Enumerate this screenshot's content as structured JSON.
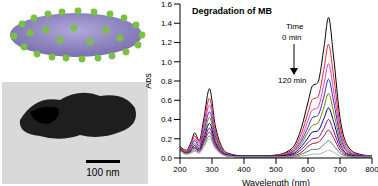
{
  "chart_data": {
    "type": "line",
    "title": "Degradation of MB",
    "x_label": "Wavelength (nm)",
    "y_label": "Abs",
    "xlim": [
      200,
      800
    ],
    "xticks": [
      200,
      300,
      400,
      500,
      600,
      700,
      800
    ],
    "ylim": [
      0,
      1.6
    ],
    "yticks": [
      {
        "value": 0,
        "label": "0.0"
      },
      0.2,
      0.4,
      0.6,
      0.8,
      {
        "value": 1,
        "label": "1.0"
      },
      1.2,
      1.4,
      1.6
    ],
    "grid": false,
    "annotations": [
      "Time",
      "0 min",
      "120 min"
    ],
    "x": [
      200,
      220,
      235,
      246,
      260,
      275,
      292,
      310,
      330,
      350,
      400,
      450,
      500,
      550,
      580,
      600,
      614,
      630,
      650,
      664,
      680,
      700,
      720,
      750,
      800
    ],
    "series": [
      {
        "color": "#000000",
        "values": [
          0.12,
          0.08,
          0.17,
          0.26,
          0.18,
          0.42,
          0.72,
          0.34,
          0.12,
          0.05,
          0.02,
          0.02,
          0.03,
          0.1,
          0.32,
          0.58,
          0.75,
          0.78,
          1.15,
          1.46,
          1.05,
          0.42,
          0.15,
          0.05,
          0.02
        ]
      },
      {
        "color": "#e8202a",
        "values": [
          0.11,
          0.07,
          0.15,
          0.23,
          0.16,
          0.36,
          0.62,
          0.29,
          0.1,
          0.04,
          0.02,
          0.02,
          0.03,
          0.08,
          0.26,
          0.47,
          0.61,
          0.63,
          0.93,
          1.18,
          0.85,
          0.34,
          0.12,
          0.04,
          0.02
        ]
      },
      {
        "color": "#e040c0",
        "values": [
          0.11,
          0.07,
          0.13,
          0.2,
          0.14,
          0.32,
          0.55,
          0.26,
          0.09,
          0.04,
          0.02,
          0.02,
          0.02,
          0.07,
          0.21,
          0.39,
          0.5,
          0.52,
          0.77,
          0.98,
          0.7,
          0.28,
          0.1,
          0.03,
          0.02
        ]
      },
      {
        "color": "#3030d0",
        "values": [
          0.1,
          0.06,
          0.12,
          0.18,
          0.12,
          0.28,
          0.48,
          0.23,
          0.08,
          0.03,
          0.02,
          0.02,
          0.02,
          0.06,
          0.18,
          0.32,
          0.42,
          0.44,
          0.64,
          0.82,
          0.59,
          0.24,
          0.08,
          0.03,
          0.02
        ]
      },
      {
        "color": "#808000",
        "values": [
          0.1,
          0.06,
          0.1,
          0.15,
          0.1,
          0.24,
          0.42,
          0.2,
          0.07,
          0.03,
          0.02,
          0.02,
          0.02,
          0.05,
          0.15,
          0.27,
          0.34,
          0.36,
          0.53,
          0.67,
          0.48,
          0.19,
          0.07,
          0.02,
          0.01
        ]
      },
      {
        "color": "#000080",
        "values": [
          0.09,
          0.05,
          0.09,
          0.13,
          0.09,
          0.21,
          0.36,
          0.17,
          0.06,
          0.03,
          0.02,
          0.02,
          0.02,
          0.04,
          0.12,
          0.21,
          0.27,
          0.28,
          0.41,
          0.52,
          0.38,
          0.15,
          0.05,
          0.02,
          0.01
        ]
      },
      {
        "color": "#8000a0",
        "values": [
          0.09,
          0.05,
          0.08,
          0.11,
          0.08,
          0.18,
          0.31,
          0.15,
          0.05,
          0.02,
          0.01,
          0.01,
          0.01,
          0.03,
          0.09,
          0.16,
          0.2,
          0.21,
          0.31,
          0.4,
          0.28,
          0.11,
          0.04,
          0.01,
          0.01
        ]
      },
      {
        "color": "#a02020",
        "values": [
          0.08,
          0.05,
          0.07,
          0.1,
          0.07,
          0.16,
          0.27,
          0.13,
          0.05,
          0.02,
          0.01,
          0.01,
          0.01,
          0.02,
          0.06,
          0.12,
          0.15,
          0.16,
          0.23,
          0.29,
          0.21,
          0.08,
          0.03,
          0.01,
          0.01
        ]
      },
      {
        "color": "#508080",
        "values": [
          0.08,
          0.04,
          0.06,
          0.08,
          0.06,
          0.13,
          0.23,
          0.11,
          0.04,
          0.02,
          0.01,
          0.01,
          0.01,
          0.01,
          0.04,
          0.07,
          0.09,
          0.09,
          0.14,
          0.18,
          0.13,
          0.05,
          0.02,
          0.01,
          0.01
        ]
      },
      {
        "color": "#b0b0b0",
        "values": [
          0.08,
          0.04,
          0.05,
          0.07,
          0.05,
          0.12,
          0.2,
          0.1,
          0.04,
          0.02,
          0.01,
          0.01,
          0.01,
          0.01,
          0.02,
          0.03,
          0.04,
          0.04,
          0.06,
          0.08,
          0.06,
          0.02,
          0.01,
          0.01,
          0.01
        ]
      }
    ]
  },
  "panel": {
    "scale_bar": "100 nm"
  }
}
